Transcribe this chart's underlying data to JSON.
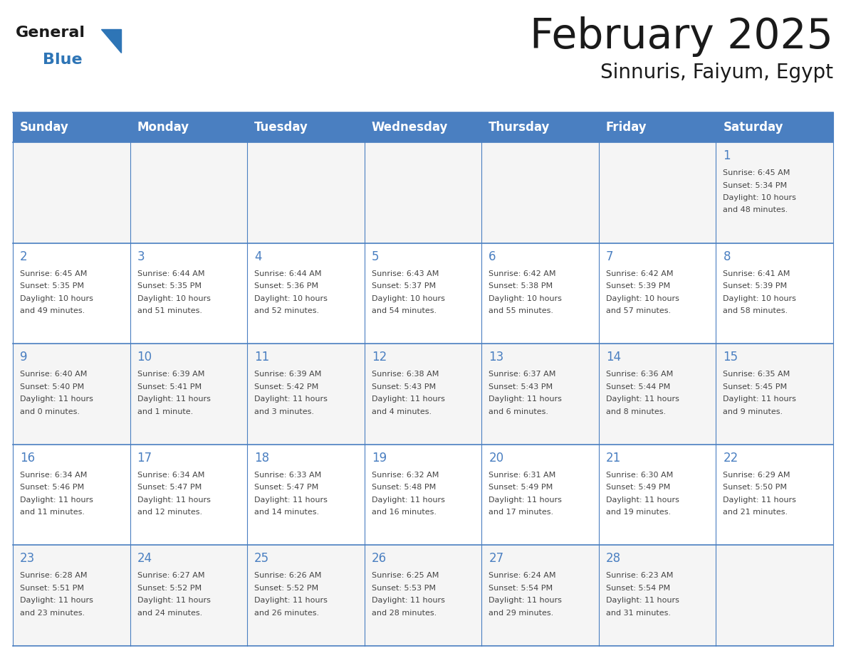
{
  "title": "February 2025",
  "subtitle": "Sinnuris, Faiyum, Egypt",
  "days_of_week": [
    "Sunday",
    "Monday",
    "Tuesday",
    "Wednesday",
    "Thursday",
    "Friday",
    "Saturday"
  ],
  "header_bg": "#4a7fc1",
  "header_text": "#FFFFFF",
  "cell_bg_even": "#F5F5F5",
  "cell_bg_odd": "#FFFFFF",
  "border_color": "#4a7fc1",
  "line_color": "#4a7fc1",
  "text_color": "#444444",
  "title_color": "#1a1a1a",
  "logo_general_color": "#1a1a1a",
  "logo_blue_color": "#2E75B6",
  "logo_triangle_color": "#2E75B6",
  "calendar_data": [
    [
      null,
      null,
      null,
      null,
      null,
      null,
      {
        "day": 1,
        "sunrise": "6:45 AM",
        "sunset": "5:34 PM",
        "daylight": "10 hours and 48 minutes."
      }
    ],
    [
      {
        "day": 2,
        "sunrise": "6:45 AM",
        "sunset": "5:35 PM",
        "daylight": "10 hours and 49 minutes."
      },
      {
        "day": 3,
        "sunrise": "6:44 AM",
        "sunset": "5:35 PM",
        "daylight": "10 hours and 51 minutes."
      },
      {
        "day": 4,
        "sunrise": "6:44 AM",
        "sunset": "5:36 PM",
        "daylight": "10 hours and 52 minutes."
      },
      {
        "day": 5,
        "sunrise": "6:43 AM",
        "sunset": "5:37 PM",
        "daylight": "10 hours and 54 minutes."
      },
      {
        "day": 6,
        "sunrise": "6:42 AM",
        "sunset": "5:38 PM",
        "daylight": "10 hours and 55 minutes."
      },
      {
        "day": 7,
        "sunrise": "6:42 AM",
        "sunset": "5:39 PM",
        "daylight": "10 hours and 57 minutes."
      },
      {
        "day": 8,
        "sunrise": "6:41 AM",
        "sunset": "5:39 PM",
        "daylight": "10 hours and 58 minutes."
      }
    ],
    [
      {
        "day": 9,
        "sunrise": "6:40 AM",
        "sunset": "5:40 PM",
        "daylight": "11 hours and 0 minutes."
      },
      {
        "day": 10,
        "sunrise": "6:39 AM",
        "sunset": "5:41 PM",
        "daylight": "11 hours and 1 minute."
      },
      {
        "day": 11,
        "sunrise": "6:39 AM",
        "sunset": "5:42 PM",
        "daylight": "11 hours and 3 minutes."
      },
      {
        "day": 12,
        "sunrise": "6:38 AM",
        "sunset": "5:43 PM",
        "daylight": "11 hours and 4 minutes."
      },
      {
        "day": 13,
        "sunrise": "6:37 AM",
        "sunset": "5:43 PM",
        "daylight": "11 hours and 6 minutes."
      },
      {
        "day": 14,
        "sunrise": "6:36 AM",
        "sunset": "5:44 PM",
        "daylight": "11 hours and 8 minutes."
      },
      {
        "day": 15,
        "sunrise": "6:35 AM",
        "sunset": "5:45 PM",
        "daylight": "11 hours and 9 minutes."
      }
    ],
    [
      {
        "day": 16,
        "sunrise": "6:34 AM",
        "sunset": "5:46 PM",
        "daylight": "11 hours and 11 minutes."
      },
      {
        "day": 17,
        "sunrise": "6:34 AM",
        "sunset": "5:47 PM",
        "daylight": "11 hours and 12 minutes."
      },
      {
        "day": 18,
        "sunrise": "6:33 AM",
        "sunset": "5:47 PM",
        "daylight": "11 hours and 14 minutes."
      },
      {
        "day": 19,
        "sunrise": "6:32 AM",
        "sunset": "5:48 PM",
        "daylight": "11 hours and 16 minutes."
      },
      {
        "day": 20,
        "sunrise": "6:31 AM",
        "sunset": "5:49 PM",
        "daylight": "11 hours and 17 minutes."
      },
      {
        "day": 21,
        "sunrise": "6:30 AM",
        "sunset": "5:49 PM",
        "daylight": "11 hours and 19 minutes."
      },
      {
        "day": 22,
        "sunrise": "6:29 AM",
        "sunset": "5:50 PM",
        "daylight": "11 hours and 21 minutes."
      }
    ],
    [
      {
        "day": 23,
        "sunrise": "6:28 AM",
        "sunset": "5:51 PM",
        "daylight": "11 hours and 23 minutes."
      },
      {
        "day": 24,
        "sunrise": "6:27 AM",
        "sunset": "5:52 PM",
        "daylight": "11 hours and 24 minutes."
      },
      {
        "day": 25,
        "sunrise": "6:26 AM",
        "sunset": "5:52 PM",
        "daylight": "11 hours and 26 minutes."
      },
      {
        "day": 26,
        "sunrise": "6:25 AM",
        "sunset": "5:53 PM",
        "daylight": "11 hours and 28 minutes."
      },
      {
        "day": 27,
        "sunrise": "6:24 AM",
        "sunset": "5:54 PM",
        "daylight": "11 hours and 29 minutes."
      },
      {
        "day": 28,
        "sunrise": "6:23 AM",
        "sunset": "5:54 PM",
        "daylight": "11 hours and 31 minutes."
      },
      null
    ]
  ],
  "num_rows": 5,
  "num_cols": 7
}
